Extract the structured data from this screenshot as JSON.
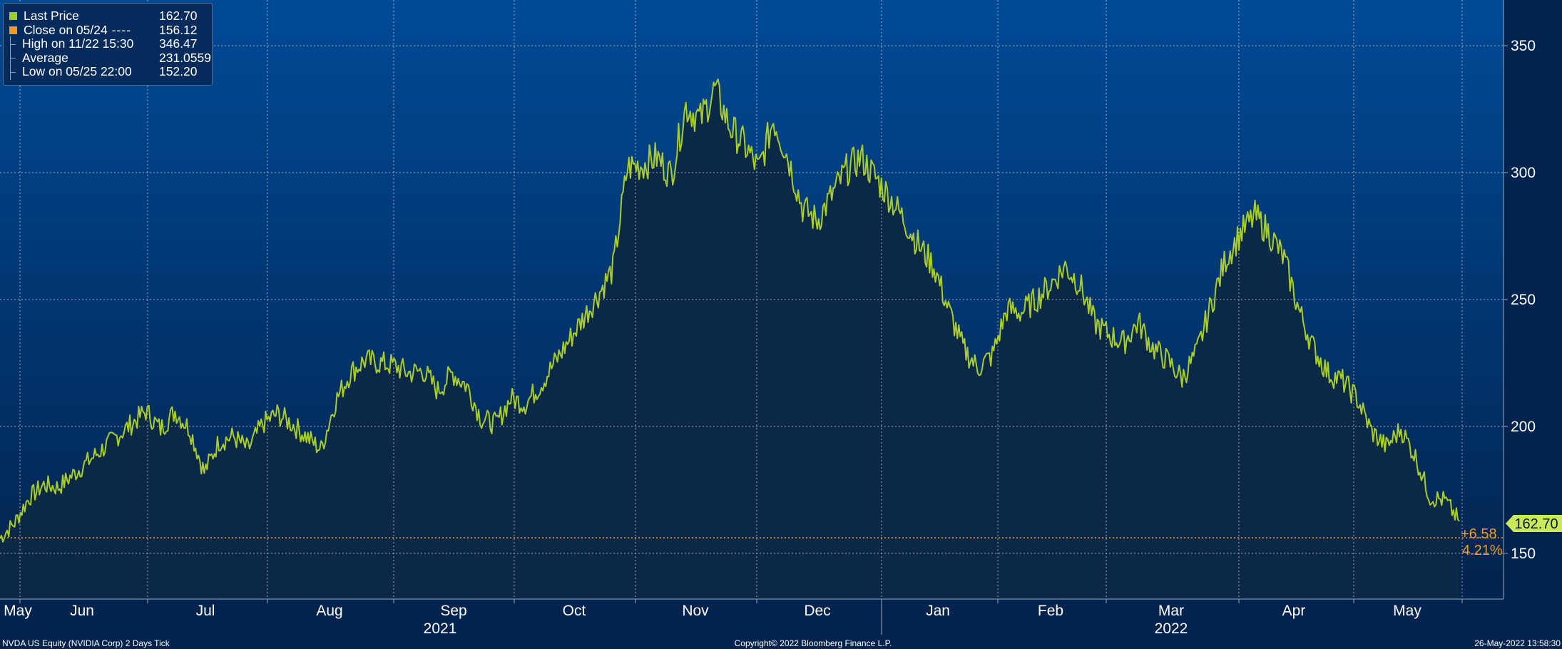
{
  "chart_data": {
    "type": "line",
    "title": "",
    "ticker_label": "NVDA US Equity (NVIDIA Corp) 2 Days  Tick",
    "copyright": "Copyright© 2022 Bloomberg Finance L.P.",
    "timestamp": "26-May-2022 13:58:30",
    "x_axis": {
      "months": [
        "May",
        "Jun",
        "Jul",
        "Aug",
        "Sep",
        "Oct",
        "Nov",
        "Dec",
        "Jan",
        "Feb",
        "Mar",
        "Apr",
        "May"
      ],
      "years": [
        "2021",
        "2022"
      ]
    },
    "y_axis": {
      "ticks": [
        150,
        200,
        250,
        300,
        350
      ],
      "range": [
        132,
        368
      ]
    },
    "series": [
      {
        "name": "Last Price",
        "color": "#aacc2a",
        "x": [
          0.0,
          0.01,
          0.02,
          0.03,
          0.04,
          0.05,
          0.06,
          0.07,
          0.08,
          0.09,
          0.1,
          0.11,
          0.12,
          0.13,
          0.14,
          0.15,
          0.16,
          0.17,
          0.18,
          0.19,
          0.2,
          0.21,
          0.22,
          0.23,
          0.24,
          0.25,
          0.26,
          0.27,
          0.28,
          0.29,
          0.3,
          0.31,
          0.32,
          0.33,
          0.34,
          0.35,
          0.36,
          0.37,
          0.38,
          0.39,
          0.4,
          0.41,
          0.42,
          0.43,
          0.44,
          0.45,
          0.46,
          0.47,
          0.48,
          0.49,
          0.5,
          0.51,
          0.52,
          0.53,
          0.54,
          0.55,
          0.56,
          0.57,
          0.58,
          0.59,
          0.6,
          0.61,
          0.62,
          0.63,
          0.64,
          0.65,
          0.66,
          0.67,
          0.68,
          0.69,
          0.7,
          0.71,
          0.72,
          0.73,
          0.74,
          0.75,
          0.76,
          0.77,
          0.78,
          0.79,
          0.8,
          0.81,
          0.82,
          0.83,
          0.84,
          0.85,
          0.86,
          0.87,
          0.88,
          0.89,
          0.9,
          0.91,
          0.92,
          0.93,
          0.94,
          0.95,
          0.96,
          0.97,
          0.98,
          0.99,
          1.0
        ],
        "values": [
          156,
          162,
          172,
          177,
          176,
          181,
          186,
          191,
          196,
          201,
          206,
          199,
          206,
          199,
          182,
          194,
          196,
          191,
          201,
          205,
          201,
          196,
          191,
          210,
          221,
          226,
          225,
          224,
          221,
          222,
          214,
          221,
          216,
          203,
          201,
          211,
          209,
          216,
          225,
          234,
          243,
          252,
          262,
          302,
          303,
          306,
          299,
          326,
          321,
          333,
          318,
          311,
          301,
          321,
          306,
          286,
          281,
          291,
          301,
          306,
          298,
          290,
          281,
          271,
          263,
          246,
          231,
          223,
          228,
          246,
          245,
          250,
          256,
          263,
          256,
          241,
          236,
          233,
          241,
          231,
          226,
          219,
          229,
          248,
          266,
          276,
          283,
          276,
          266,
          246,
          231,
          221,
          218,
          211,
          198,
          192,
          199,
          188,
          172,
          171,
          162.7
        ]
      }
    ],
    "legend": {
      "placement": "top-left",
      "entries": [
        {
          "label": "Last Price",
          "value": "162.70",
          "symbol": "square",
          "color": "#9ccd2a"
        },
        {
          "label": "Close on 05/24",
          "dash": "----",
          "value": "156.12",
          "symbol": "square",
          "color": "#f39a1b"
        },
        {
          "label": "High on 11/22 15:30",
          "value": "346.47",
          "symbol": "tree",
          "color": "#8fa0b8"
        },
        {
          "label": "Average",
          "value": "231.0559",
          "symbol": "tree",
          "color": "#8fa0b8"
        },
        {
          "label": "Low on 05/25 22:00",
          "value": "152.20",
          "symbol": "tree",
          "color": "#8fa0b8"
        }
      ]
    },
    "reference_line": {
      "name": "Close on 05/24",
      "value": 156.12,
      "color": "#f39a1b"
    },
    "annotations": {
      "last_price_tag": "162.70",
      "change_abs": "+6.58",
      "change_pct": "4.21%"
    },
    "grid": true,
    "colors": {
      "background_top": "#004a96",
      "background_bottom": "#02234d",
      "fill": "#0b2847",
      "line": "#aacc2a",
      "tag": "#c9e85a",
      "orange": "#f39a1b"
    }
  }
}
